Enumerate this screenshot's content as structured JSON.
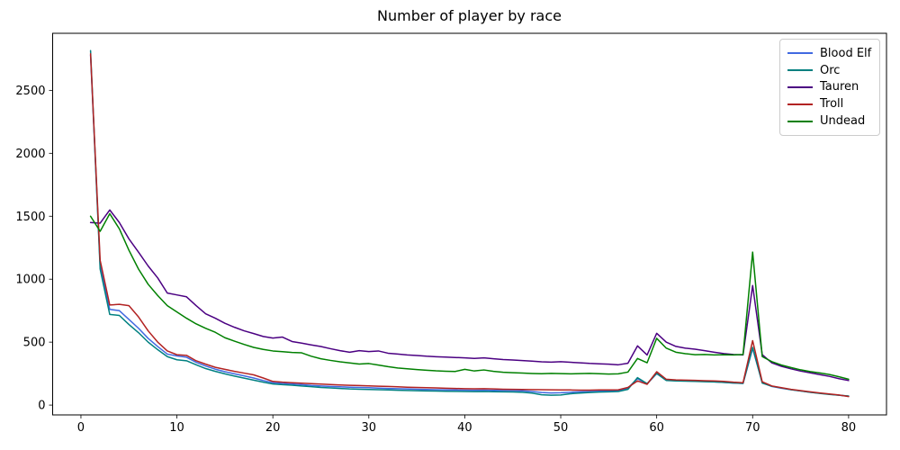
{
  "chart_data": {
    "type": "line",
    "title": "Number of player by race",
    "xlabel": "",
    "ylabel": "",
    "xlim": [
      -2.95,
      83.95
    ],
    "ylim": [
      -78,
      2953
    ],
    "xticks": [
      0,
      10,
      20,
      30,
      40,
      50,
      60,
      70,
      80
    ],
    "yticks": [
      0,
      500,
      1000,
      1500,
      2000,
      2500
    ],
    "grid": false,
    "legend_position": "upper right",
    "x": [
      1,
      2,
      3,
      4,
      5,
      6,
      7,
      8,
      9,
      10,
      11,
      12,
      13,
      14,
      15,
      16,
      17,
      18,
      19,
      20,
      21,
      22,
      23,
      24,
      25,
      26,
      27,
      28,
      29,
      30,
      31,
      32,
      33,
      34,
      35,
      36,
      37,
      38,
      39,
      40,
      41,
      42,
      43,
      44,
      45,
      46,
      47,
      48,
      49,
      50,
      51,
      52,
      53,
      54,
      55,
      56,
      57,
      58,
      59,
      60,
      61,
      62,
      63,
      64,
      65,
      66,
      67,
      68,
      69,
      70,
      71,
      72,
      73,
      74,
      75,
      76,
      77,
      78,
      79,
      80
    ],
    "series": [
      {
        "name": "Blood Elf",
        "color": "#4169e1",
        "values": [
          2780,
          1110,
          760,
          750,
          680,
          610,
          530,
          465,
          405,
          390,
          380,
          340,
          310,
          285,
          265,
          248,
          232,
          215,
          195,
          178,
          172,
          168,
          162,
          156,
          152,
          148,
          145,
          142,
          140,
          138,
          135,
          132,
          130,
          128,
          126,
          124,
          122,
          121,
          120,
          119,
          118,
          119,
          117,
          116,
          115,
          113,
          108,
          100,
          96,
          98,
          102,
          105,
          108,
          110,
          112,
          114,
          135,
          210,
          168,
          250,
          198,
          194,
          192,
          190,
          188,
          185,
          180,
          175,
          172,
          450,
          178,
          148,
          134,
          122,
          112,
          102,
          94,
          86,
          78,
          70
        ]
      },
      {
        "name": "Orc",
        "color": "#008080",
        "values": [
          2815,
          1080,
          720,
          712,
          640,
          575,
          500,
          440,
          385,
          360,
          352,
          320,
          290,
          268,
          248,
          230,
          214,
          198,
          182,
          168,
          162,
          158,
          152,
          146,
          140,
          136,
          132,
          128,
          126,
          124,
          122,
          120,
          118,
          116,
          114,
          112,
          111,
          110,
          109,
          108,
          107,
          108,
          106,
          105,
          104,
          102,
          95,
          82,
          78,
          80,
          90,
          95,
          100,
          103,
          105,
          108,
          125,
          218,
          170,
          252,
          195,
          192,
          190,
          188,
          186,
          184,
          180,
          176,
          172,
          458,
          175,
          150,
          136,
          122,
          112,
          102,
          93,
          85,
          78,
          72
        ]
      },
      {
        "name": "Tauren",
        "color": "#4b0082",
        "values": [
          1450,
          1445,
          1550,
          1450,
          1320,
          1215,
          1105,
          1010,
          890,
          875,
          860,
          790,
          725,
          690,
          650,
          618,
          590,
          568,
          545,
          532,
          540,
          505,
          492,
          478,
          465,
          448,
          432,
          420,
          432,
          425,
          430,
          412,
          405,
          398,
          394,
          388,
          384,
          381,
          378,
          375,
          371,
          375,
          368,
          362,
          358,
          354,
          349,
          344,
          341,
          345,
          340,
          336,
          331,
          328,
          325,
          320,
          332,
          470,
          398,
          570,
          500,
          466,
          452,
          444,
          432,
          420,
          409,
          402,
          398,
          950,
          400,
          335,
          308,
          288,
          270,
          256,
          242,
          228,
          210,
          195
        ]
      },
      {
        "name": "Troll",
        "color": "#b22222",
        "values": [
          2790,
          1150,
          795,
          800,
          790,
          700,
          590,
          500,
          430,
          400,
          395,
          352,
          325,
          300,
          284,
          268,
          254,
          240,
          215,
          188,
          182,
          178,
          174,
          170,
          167,
          163,
          160,
          157,
          155,
          153,
          150,
          148,
          145,
          142,
          140,
          138,
          136,
          134,
          132,
          130,
          129,
          130,
          128,
          126,
          125,
          124,
          123,
          122,
          121,
          120,
          120,
          119,
          119,
          120,
          120,
          121,
          140,
          192,
          165,
          265,
          205,
          200,
          198,
          196,
          194,
          192,
          188,
          182,
          178,
          512,
          185,
          152,
          138,
          125,
          115,
          105,
          96,
          88,
          80,
          68
        ]
      },
      {
        "name": "Undead",
        "color": "#008000",
        "values": [
          1500,
          1380,
          1520,
          1400,
          1230,
          1080,
          960,
          870,
          790,
          740,
          690,
          645,
          610,
          578,
          535,
          508,
          482,
          458,
          442,
          430,
          424,
          418,
          415,
          388,
          368,
          355,
          344,
          335,
          326,
          330,
          318,
          305,
          295,
          288,
          282,
          277,
          272,
          269,
          267,
          284,
          271,
          279,
          268,
          261,
          257,
          254,
          251,
          249,
          252,
          250,
          248,
          250,
          252,
          249,
          246,
          248,
          262,
          370,
          336,
          530,
          452,
          420,
          408,
          400,
          402,
          398,
          400,
          398,
          402,
          1215,
          385,
          345,
          318,
          298,
          280,
          266,
          255,
          243,
          225,
          205
        ]
      }
    ]
  }
}
